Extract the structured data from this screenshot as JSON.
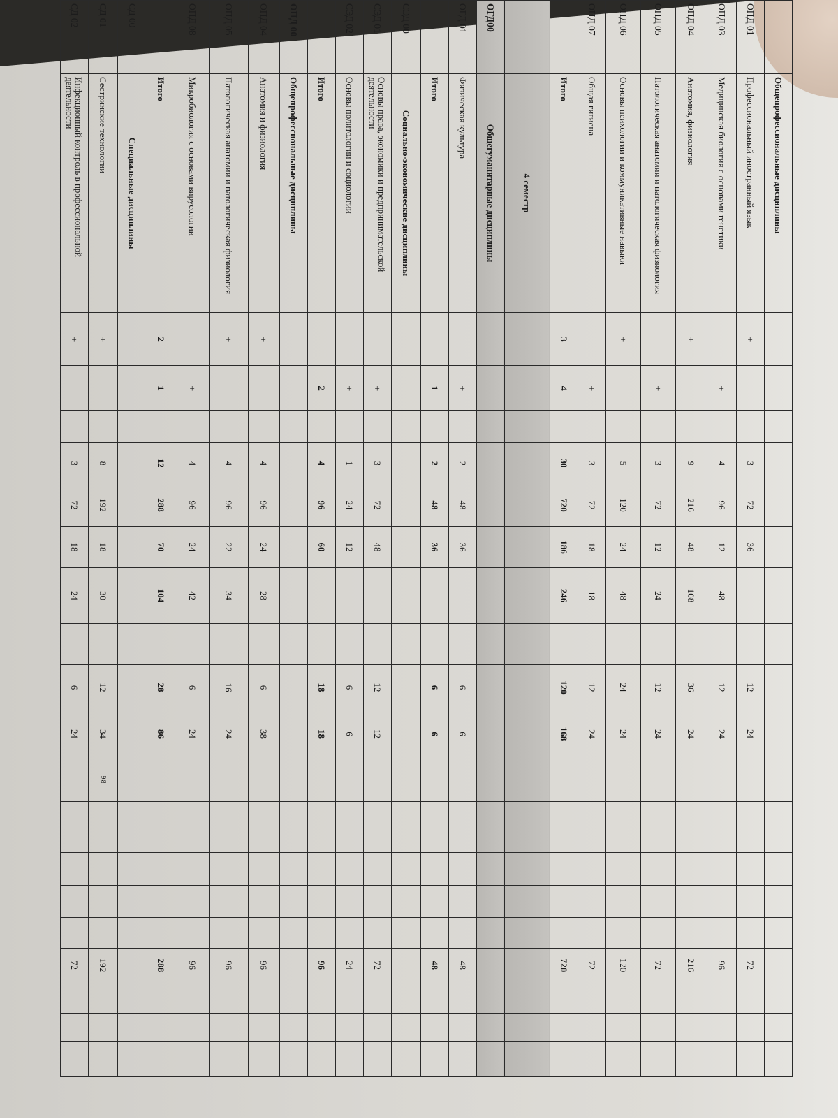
{
  "document": {
    "rows": [
      {
        "code": "",
        "name": "Общепрофессиональные дисциплины",
        "kind": "section",
        "cells": [
          "",
          "",
          "",
          "",
          "",
          "",
          "",
          "",
          "",
          "",
          "",
          "",
          "",
          "",
          "",
          "",
          "",
          "",
          ""
        ]
      },
      {
        "code": "ОПД 01",
        "name": "Профессиональный иностранный язык",
        "kind": "item",
        "cells": [
          "+",
          "",
          "",
          "3",
          "72",
          "36",
          "",
          "",
          "12",
          "24",
          "",
          "",
          "",
          "",
          "",
          "72",
          "",
          "",
          ""
        ]
      },
      {
        "code": "ОПД 03",
        "name": "Медицинская биология с основами генетики",
        "kind": "item",
        "cells": [
          "",
          "+",
          "",
          "4",
          "96",
          "12",
          "48",
          "",
          "12",
          "24",
          "",
          "",
          "",
          "",
          "",
          "96",
          "",
          "",
          ""
        ]
      },
      {
        "code": "ОПД 04",
        "name": "Анатомия, физиология",
        "kind": "item",
        "cells": [
          "+",
          "",
          "",
          "9",
          "216",
          "48",
          "108",
          "",
          "36",
          "24",
          "",
          "",
          "",
          "",
          "",
          "216",
          "",
          "",
          ""
        ]
      },
      {
        "code": "ОПД 05",
        "name": "Патологическая анатомии и патологическая физиология",
        "kind": "item",
        "cells": [
          "",
          "+",
          "",
          "3",
          "72",
          "12",
          "24",
          "",
          "12",
          "24",
          "",
          "",
          "",
          "",
          "",
          "72",
          "",
          "",
          ""
        ]
      },
      {
        "code": "ОПД 06",
        "name": "Основы психологии и коммуникативные навыки",
        "kind": "item",
        "cells": [
          "+",
          "",
          "",
          "5",
          "120",
          "24",
          "48",
          "",
          "24",
          "24",
          "",
          "",
          "",
          "",
          "",
          "120",
          "",
          "",
          ""
        ]
      },
      {
        "code": "ОПД 07",
        "name": "Общая гигиена",
        "kind": "item",
        "cells": [
          "",
          "+",
          "",
          "3",
          "72",
          "18",
          "18",
          "",
          "12",
          "24",
          "",
          "",
          "",
          "",
          "",
          "72",
          "",
          "",
          ""
        ]
      },
      {
        "code": "",
        "name": "Итого",
        "kind": "total",
        "cells": [
          "3",
          "4",
          "",
          "30",
          "720",
          "186",
          "246",
          "",
          "120",
          "168",
          "",
          "",
          "",
          "",
          "",
          "720",
          "",
          "",
          ""
        ]
      },
      {
        "code": "",
        "name": "4 семестр",
        "kind": "semester",
        "cells": [
          "",
          "",
          "",
          "",
          "",
          "",
          "",
          "",
          "",
          "",
          "",
          "",
          "",
          "",
          "",
          "",
          "",
          "",
          ""
        ]
      },
      {
        "code": "ОГД00",
        "name": "Общегуманитарные дисциплины",
        "kind": "section-shaded",
        "cells": [
          "",
          "",
          "",
          "",
          "",
          "",
          "",
          "",
          "",
          "",
          "",
          "",
          "",
          "",
          "",
          "",
          "",
          "",
          ""
        ]
      },
      {
        "code": "ОГД 01",
        "name": "Физическая культура",
        "kind": "item",
        "cells": [
          "",
          "+",
          "",
          "2",
          "48",
          "36",
          "",
          "",
          "6",
          "6",
          "",
          "",
          "",
          "",
          "",
          "48",
          "",
          "",
          ""
        ]
      },
      {
        "code": "",
        "name": "Итого",
        "kind": "total",
        "cells": [
          "",
          "1",
          "",
          "2",
          "48",
          "36",
          "",
          "",
          "6",
          "6",
          "",
          "",
          "",
          "",
          "",
          "48",
          "",
          "",
          ""
        ]
      },
      {
        "code": "СЭД 00",
        "name": "Социально-экономические дисциплины",
        "kind": "center",
        "cells": [
          "",
          "",
          "",
          "",
          "",
          "",
          "",
          "",
          "",
          "",
          "",
          "",
          "",
          "",
          "",
          "",
          "",
          "",
          ""
        ]
      },
      {
        "code": "СЭД 01",
        "name": "Основы права, экономики и предпринимательской деятельности",
        "kind": "item",
        "cells": [
          "",
          "+",
          "",
          "3",
          "72",
          "48",
          "",
          "",
          "12",
          "12",
          "",
          "",
          "",
          "",
          "",
          "72",
          "",
          "",
          ""
        ]
      },
      {
        "code": "СЭД 02",
        "name": "Основы политологии и социологии",
        "kind": "item",
        "cells": [
          "",
          "+",
          "",
          "1",
          "24",
          "12",
          "",
          "",
          "6",
          "6",
          "",
          "",
          "",
          "",
          "",
          "24",
          "",
          "",
          ""
        ]
      },
      {
        "code": "",
        "name": "Итого",
        "kind": "total",
        "cells": [
          "",
          "2",
          "",
          "4",
          "96",
          "60",
          "",
          "",
          "18",
          "18",
          "",
          "",
          "",
          "",
          "",
          "96",
          "",
          "",
          ""
        ]
      },
      {
        "code": "ОПД 00",
        "name": "Общепрофессиональные дисциплины",
        "kind": "section",
        "cells": [
          "",
          "",
          "",
          "",
          "",
          "",
          "",
          "",
          "",
          "",
          "",
          "",
          "",
          "",
          "",
          "",
          "",
          "",
          ""
        ]
      },
      {
        "code": "ОПД 04",
        "name": "Анатомия и физиология",
        "kind": "item",
        "cells": [
          "+",
          "",
          "",
          "4",
          "96",
          "24",
          "28",
          "",
          "6",
          "38",
          "",
          "",
          "",
          "",
          "",
          "96",
          "",
          "",
          ""
        ]
      },
      {
        "code": "ОПД 05",
        "name": "Патологическая анатомии и патологическая физиология",
        "kind": "item",
        "cells": [
          "+",
          "",
          "",
          "4",
          "96",
          "22",
          "34",
          "",
          "16",
          "24",
          "",
          "",
          "",
          "",
          "",
          "96",
          "",
          "",
          ""
        ]
      },
      {
        "code": "ОПД 08",
        "name": "Микробиология с основами вирусологии",
        "kind": "item",
        "cells": [
          "",
          "+",
          "",
          "4",
          "96",
          "24",
          "42",
          "",
          "6",
          "24",
          "",
          "",
          "",
          "",
          "",
          "96",
          "",
          "",
          ""
        ]
      },
      {
        "code": "",
        "name": "Итого",
        "kind": "total",
        "cells": [
          "2",
          "1",
          "",
          "12",
          "288",
          "70",
          "104",
          "",
          "28",
          "86",
          "",
          "",
          "",
          "",
          "",
          "288",
          "",
          "",
          ""
        ]
      },
      {
        "code": "СД 00",
        "name": "Специальные дисциплины",
        "kind": "center",
        "cells": [
          "",
          "",
          "",
          "",
          "",
          "",
          "",
          "",
          "",
          "",
          "",
          "",
          "",
          "",
          "",
          "",
          "",
          "",
          ""
        ]
      },
      {
        "code": "СД 01",
        "name": "Сестринские технологии",
        "kind": "item",
        "cells": [
          "+",
          "",
          "",
          "8",
          "192",
          "18",
          "30",
          "",
          "12",
          "34",
          "98",
          "",
          "",
          "",
          "",
          "192",
          "",
          "",
          ""
        ]
      },
      {
        "code": "СД 02",
        "name": "Инфекционный контроль в профессиональной деятельности",
        "kind": "item",
        "cells": [
          "+",
          "",
          "",
          "3",
          "72",
          "18",
          "24",
          "",
          "6",
          "24",
          "",
          "",
          "",
          "",
          "",
          "72",
          "",
          "",
          ""
        ]
      }
    ]
  }
}
